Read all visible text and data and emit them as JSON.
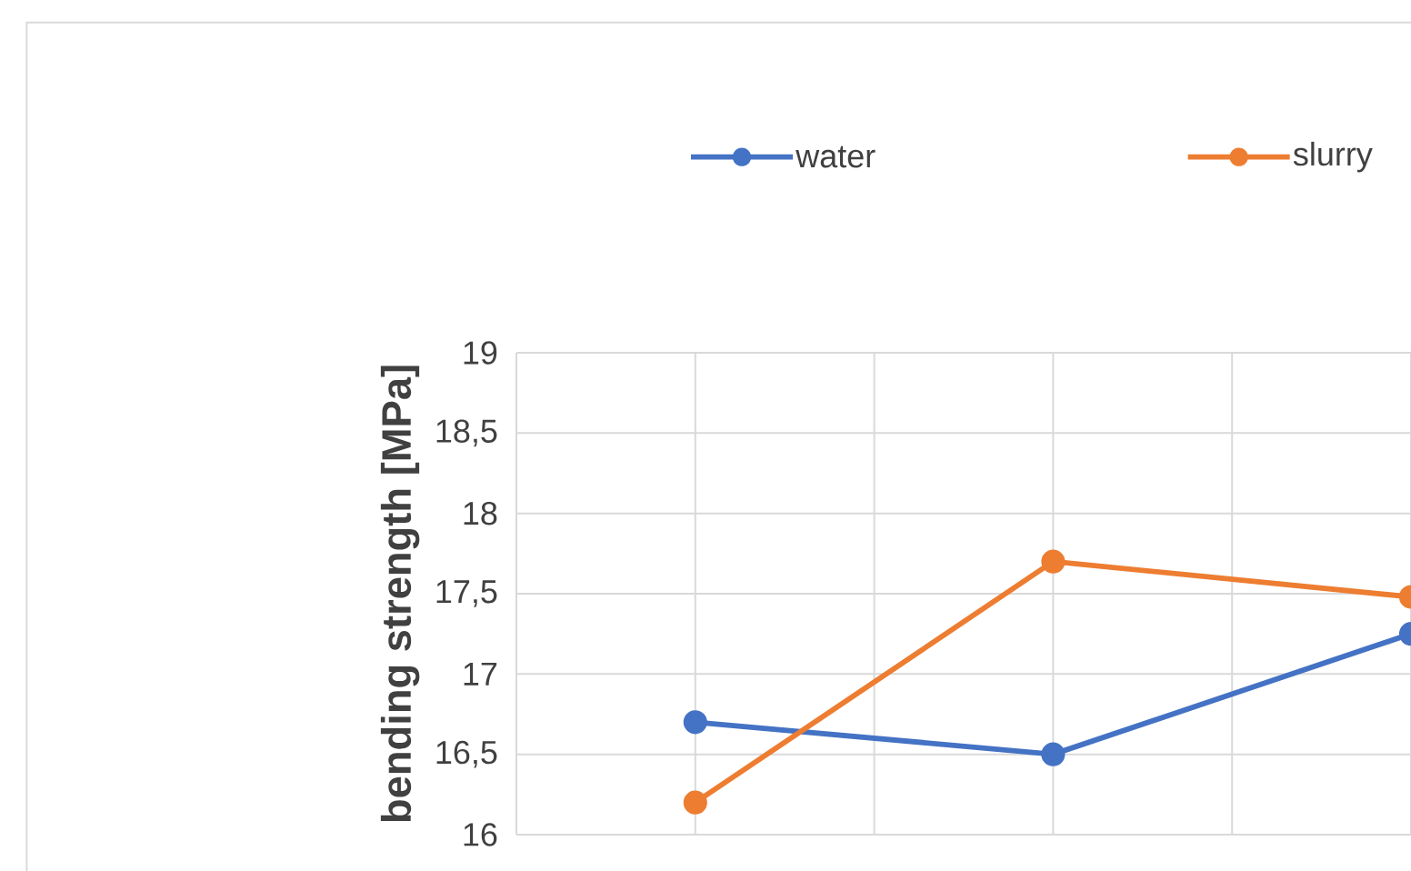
{
  "chart_data": {
    "type": "line",
    "ylabel": "bending strength [MPa]",
    "categories": [
      null,
      null,
      null
    ],
    "series": [
      {
        "name": "water",
        "color": "#4472c4",
        "values": [
          16.7,
          16.5,
          17.25
        ]
      },
      {
        "name": "slurry",
        "color": "#ed7d31",
        "values": [
          16.2,
          17.7,
          17.48
        ]
      }
    ],
    "ylim": [
      16,
      19
    ],
    "yticks": [
      16,
      {
        "value": 16.5,
        "label": "16,5"
      },
      17,
      {
        "value": 17.5,
        "label": "17,5"
      },
      18,
      {
        "value": 18.5,
        "label": "18,5"
      },
      19
    ],
    "grid": true,
    "legend": "top",
    "marker": "circle",
    "line_style": "solid"
  }
}
